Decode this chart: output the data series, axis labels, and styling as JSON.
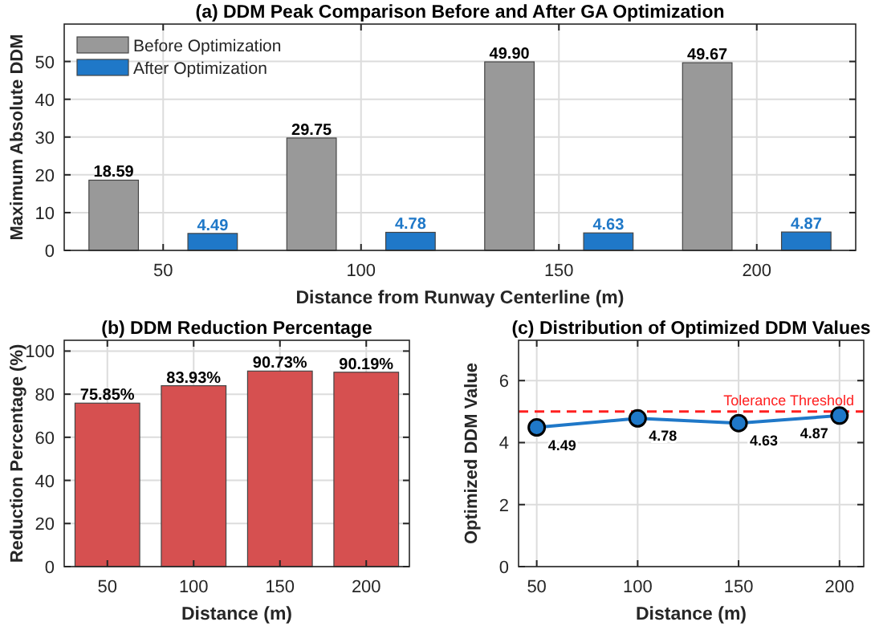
{
  "chart_data": [
    {
      "type": "bar",
      "title": "(a) DDM Peak Comparison Before and After GA Optimization",
      "xlabel": "Distance from Runway Centerline (m)",
      "ylabel": "Maximum Absolute DDM",
      "categories": [
        "50",
        "100",
        "150",
        "200"
      ],
      "series": [
        {
          "name": "Before Optimization",
          "color": "#999999",
          "values": [
            18.59,
            29.75,
            49.9,
            49.67
          ],
          "value_labels": [
            "18.59",
            "29.75",
            "49.90",
            "49.67"
          ]
        },
        {
          "name": "After Optimization",
          "color": "#1f78c8",
          "values": [
            4.49,
            4.78,
            4.63,
            4.87
          ],
          "value_labels": [
            "4.49",
            "4.78",
            "4.63",
            "4.87"
          ]
        }
      ],
      "ylim": [
        0,
        59.9
      ],
      "yticks": [
        0,
        10,
        20,
        30,
        40,
        50
      ],
      "grid": true,
      "legend": "top left"
    },
    {
      "type": "bar",
      "title": "(b) DDM Reduction Percentage",
      "xlabel": "Distance (m)",
      "ylabel": "Reduction Percentage (%)",
      "categories": [
        "50",
        "100",
        "150",
        "200"
      ],
      "series": [
        {
          "color": "#d65050",
          "values": [
            75.85,
            83.93,
            90.73,
            90.19
          ],
          "value_labels": [
            "75.85%",
            "83.93%",
            "90.73%",
            "90.19%"
          ]
        }
      ],
      "ylim": [
        0,
        105
      ],
      "yticks": [
        0,
        20,
        40,
        60,
        80,
        100
      ],
      "grid": true
    },
    {
      "type": "line",
      "title": "(c) Distribution of Optimized DDM Values",
      "xlabel": "Distance (m)",
      "ylabel": "Optimized DDM Value",
      "x": [
        50,
        100,
        150,
        200
      ],
      "series": [
        {
          "color": "#1f78c8",
          "values": [
            4.49,
            4.78,
            4.63,
            4.87
          ]
        }
      ],
      "xlim": [
        41,
        212
      ],
      "xticks": [
        50,
        100,
        150,
        200
      ],
      "ylim": [
        0,
        7.3
      ],
      "yticks": [
        0,
        2,
        4,
        6
      ],
      "grid": true,
      "marker": "circle",
      "line_style": "solid",
      "data_labels": true,
      "ref_lines": [
        {
          "axis": "y",
          "value": 5,
          "label": "Tolerance Threshold",
          "color": "#ff2020",
          "line_style": "dashed"
        }
      ]
    }
  ]
}
